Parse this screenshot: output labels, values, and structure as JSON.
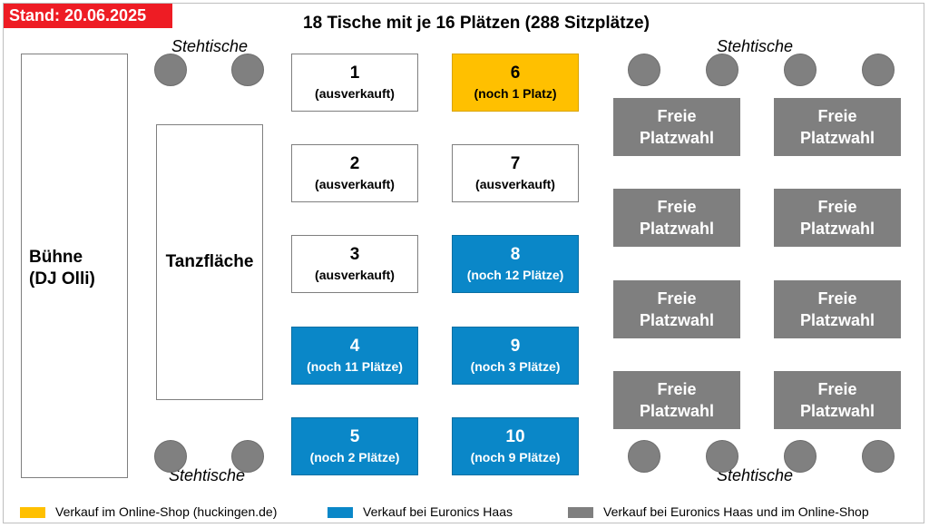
{
  "stand_label": "Stand: 20.06.2025",
  "title": "18 Tische mit je 16 Plätzen (288 Sitzplätze)",
  "stehtische_label": "Stehtische",
  "stage_label": "Bühne\n(DJ Olli)",
  "dance_label": "Tanzfläche",
  "colors": {
    "online_shop": "#ffc000",
    "euronics": "#0a87c8",
    "both": "#7f7f7f",
    "stand_bg": "#ee1c24"
  },
  "tables": [
    {
      "number": "1",
      "status": "(ausverkauft)",
      "category": "sold-out"
    },
    {
      "number": "2",
      "status": "(ausverkauft)",
      "category": "sold-out"
    },
    {
      "number": "3",
      "status": "(ausverkauft)",
      "category": "sold-out"
    },
    {
      "number": "4",
      "status": "(noch 11 Plätze)",
      "category": "euronics"
    },
    {
      "number": "5",
      "status": "(noch 2 Plätze)",
      "category": "euronics"
    },
    {
      "number": "6",
      "status": "(noch 1 Platz)",
      "category": "online-shop"
    },
    {
      "number": "7",
      "status": "(ausverkauft)",
      "category": "sold-out"
    },
    {
      "number": "8",
      "status": "(noch 12 Plätze)",
      "category": "euronics"
    },
    {
      "number": "9",
      "status": "(noch 3 Plätze)",
      "category": "euronics"
    },
    {
      "number": "10",
      "status": "(noch 9 Plätze)",
      "category": "euronics"
    }
  ],
  "free_seating_label": "Freie\nPlatzwahl",
  "legend": [
    {
      "label": "Verkauf im Online-Shop (huckingen.de)",
      "color": "#ffc000"
    },
    {
      "label": "Verkauf bei Euronics Haas",
      "color": "#0a87c8"
    },
    {
      "label": "Verkauf bei Euronics Haas und im Online-Shop",
      "color": "#7f7f7f"
    }
  ]
}
